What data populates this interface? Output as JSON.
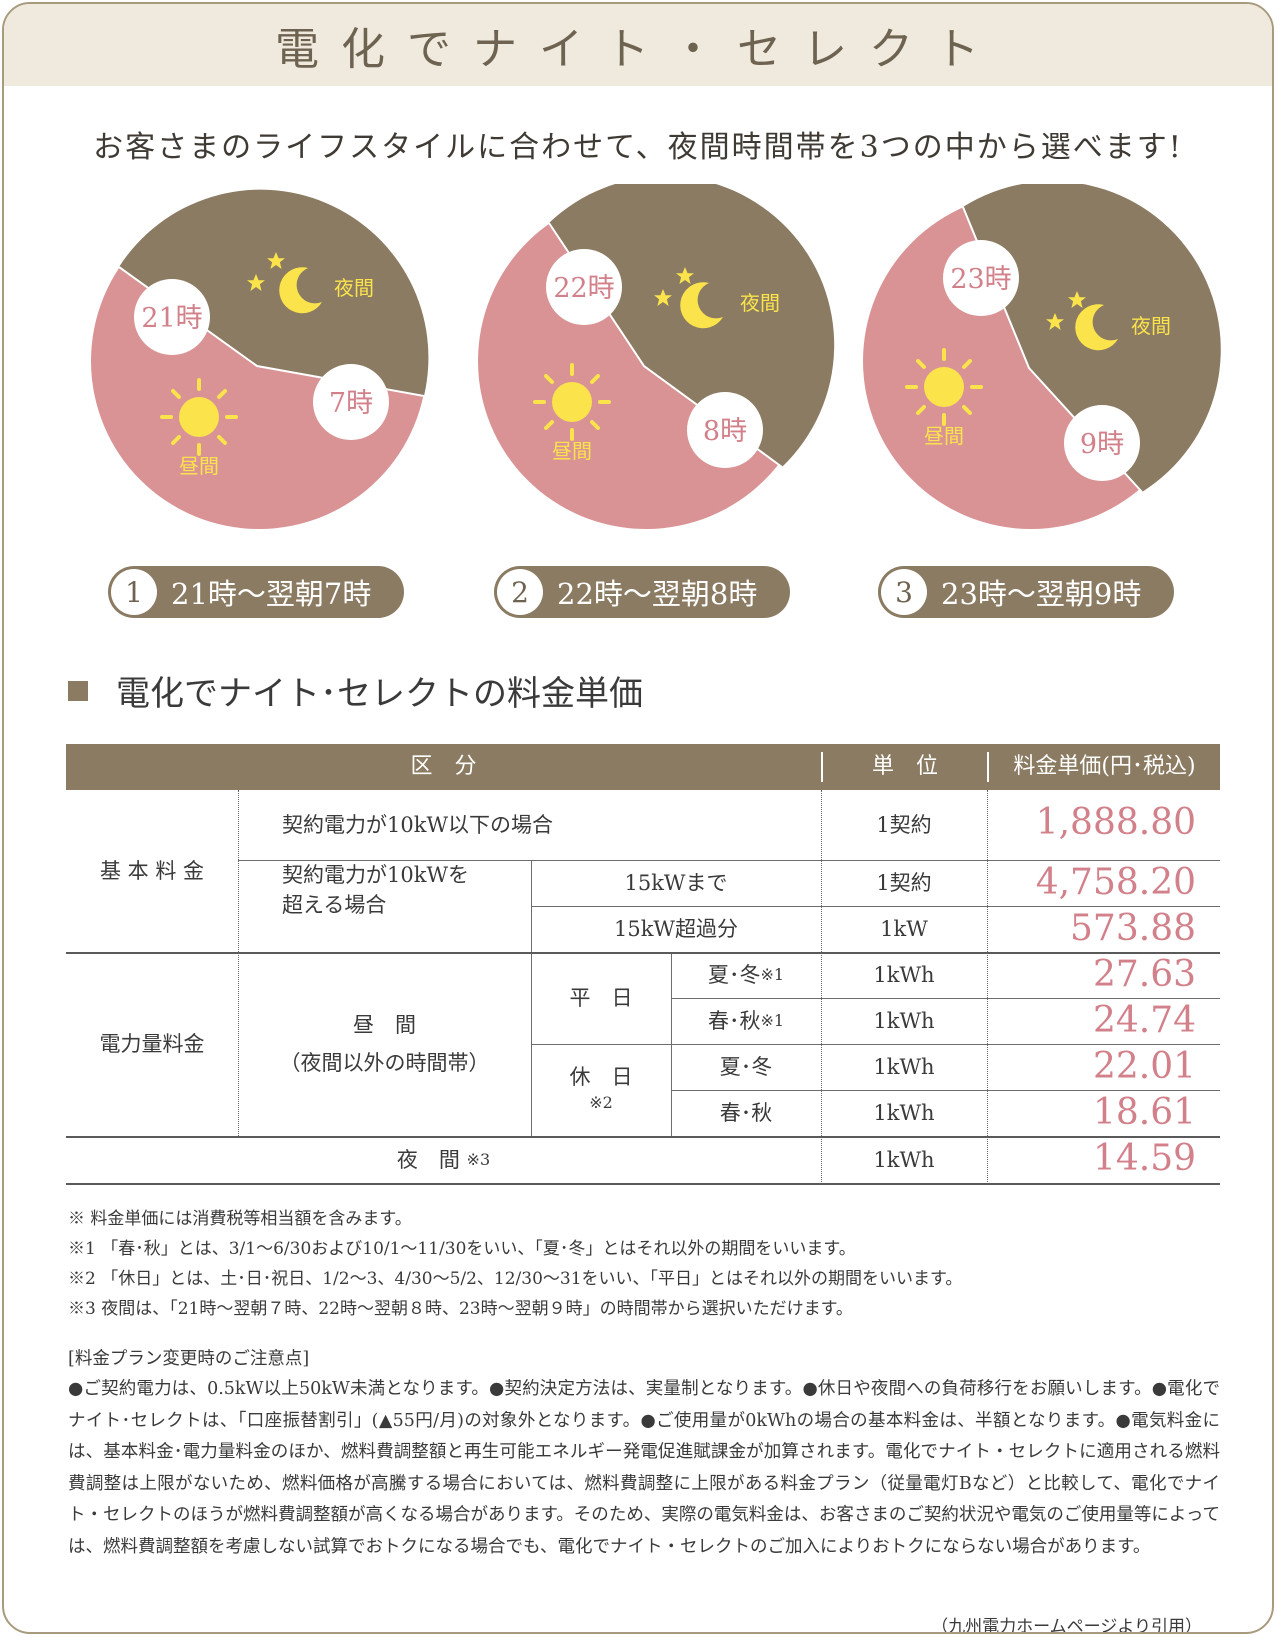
{
  "header": {
    "title": "電化でナイト・セレクト"
  },
  "subtitle": "お客さまのライフスタイルに合わせて、夜間時間帯を3つの中から選べます!",
  "plans": [
    {
      "number": "1",
      "label": "21時〜翌朝7時",
      "start": "21時",
      "end": "7時",
      "night_label": "夜間",
      "day_label": "昼間"
    },
    {
      "number": "2",
      "label": "22時〜翌朝8時",
      "start": "22時",
      "end": "8時",
      "night_label": "夜間",
      "day_label": "昼間"
    },
    {
      "number": "3",
      "label": "23時〜翌朝9時",
      "start": "23時",
      "end": "9時",
      "night_label": "夜間",
      "day_label": "昼間"
    }
  ],
  "colors": {
    "night": "#8b7b62",
    "day": "#d99395",
    "accent": "#8b7b62",
    "price": "#d2808a",
    "sun": "#fbe34c"
  },
  "icons": [
    "moon-icon",
    "star-icon",
    "sun-icon"
  ],
  "section_title": "電化でナイト･セレクトの料金単価",
  "table": {
    "headers": {
      "category": "区　分",
      "unit": "単　位",
      "price": "料金単価(円･税込)"
    },
    "basic": {
      "label": "基 本 料 金",
      "row1": {
        "label": "契約電力が10kW以下の場合",
        "unit": "1契約",
        "price": "1,888.80"
      },
      "over_label_1": "契約電力が10kWを",
      "over_label_2": "超える場合",
      "row2": {
        "label": "15kWまで",
        "unit": "1契約",
        "price": "4,758.20"
      },
      "row3": {
        "label": "15kW超過分",
        "unit": "1kW",
        "price": "573.88"
      }
    },
    "energy": {
      "label": "電力量料金",
      "day_label_1": "昼　間",
      "day_label_2": "（夜間以外の時間帯）",
      "weekday": "平　日",
      "holiday": "休　日",
      "holiday_note": "※2",
      "rows": [
        {
          "season": "夏･冬",
          "note": "※1",
          "unit": "1kWh",
          "price": "27.63"
        },
        {
          "season": "春･秋",
          "note": "※1",
          "unit": "1kWh",
          "price": "24.74"
        },
        {
          "season": "夏･冬",
          "note": "",
          "unit": "1kWh",
          "price": "22.01"
        },
        {
          "season": "春･秋",
          "note": "",
          "unit": "1kWh",
          "price": "18.61"
        }
      ]
    },
    "night": {
      "label": "夜　間",
      "note": "※3",
      "unit": "1kWh",
      "price": "14.59"
    }
  },
  "notes": [
    "※ 料金単価には消費税等相当額を含みます。",
    "※1 「春･秋」とは、3/1〜6/30および10/1〜11/30をいい、「夏･冬」とはそれ以外の期間をいいます。",
    "※2 「休日」とは、土･日･祝日、1/2〜3、4/30〜5/2、12/30〜31をいい、「平日」とはそれ以外の期間をいいます。",
    "※3 夜間は、「21時〜翌朝７時、22時〜翌朝８時、23時〜翌朝９時」の時間帯から選択いただけます。"
  ],
  "caution": {
    "title": "[料金プラン変更時のご注意点]",
    "body": "●ご契約電力は、0.5kW以上50kW未満となります。●契約決定方法は、実量制となります。●休日や夜間への負荷移行をお願いします。●電化でナイト･セレクトは、「口座振替割引」(▲55円/月)の対象外となります。●ご使用量が0kWhの場合の基本料金は、半額となります。●電気料金には、基本料金･電力量料金のほか、燃料費調整額と再生可能エネルギー発電促進賦課金が加算されます。電化でナイト・セレクトに適用される燃料費調整は上限がないため、燃料価格が高騰する場合においては、燃料費調整に上限がある料金プラン（従量電灯Bなど）と比較して、電化でナイト・セレクトのほうが燃料費調整額が高くなる場合があります。そのため、実際の電気料金は、お客さまのご契約状況や電気のご使用量等によっては、燃料費調整額を考慮しない試算でおトクになる場合でも、電化でナイト・セレクトのご加入によりおトクにならない場合があります。"
  },
  "citation": "（九州電力ホームページより引用）"
}
